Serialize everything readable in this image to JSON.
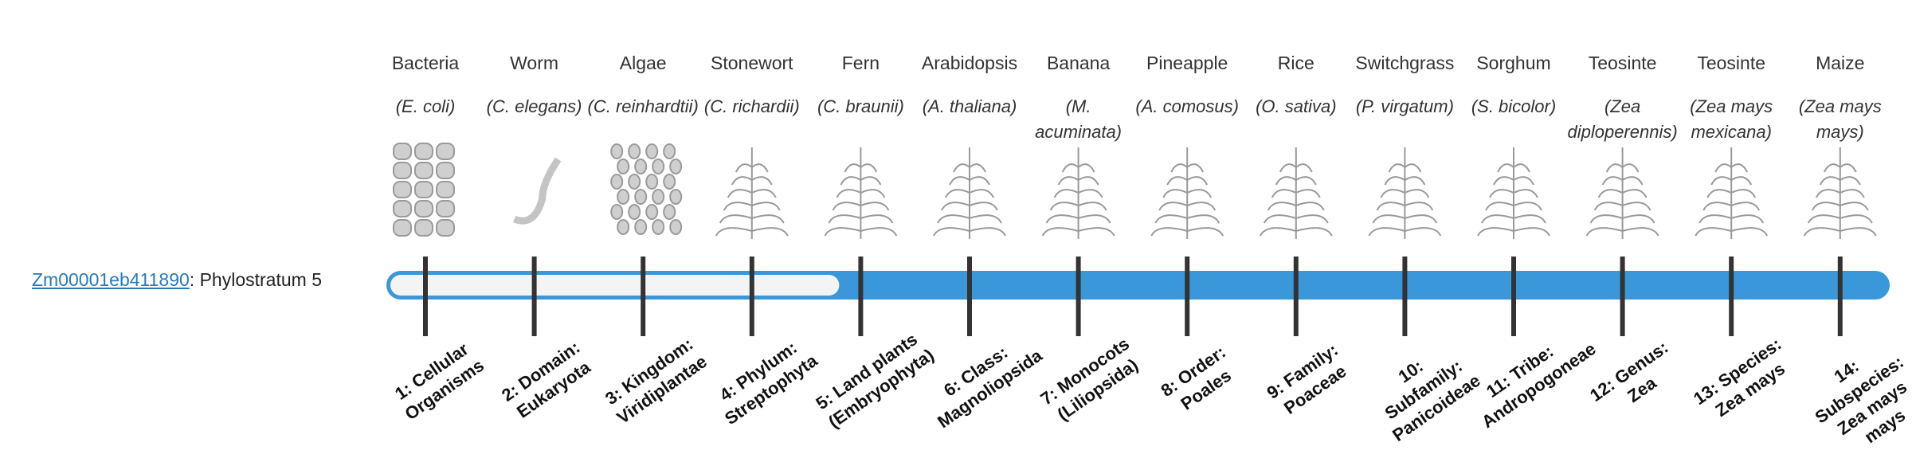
{
  "gene": {
    "id": "Zm00001eb411890",
    "separator": ":",
    "label": "Phylostratum",
    "stratum": 5
  },
  "strata": [
    {
      "name": "Bacteria",
      "species": "(E. coli)",
      "rank": "1: Cellular Organisms"
    },
    {
      "name": "Worm",
      "species": "(C. elegans)",
      "rank": "2: Domain: Eukaryota"
    },
    {
      "name": "Algae",
      "species": "(C. reinhardtii)",
      "rank": "3: Kingdom: Viridiplantae"
    },
    {
      "name": "Stonewort",
      "species": "(C. richardii)",
      "rank": "4: Phylum: Streptophyta"
    },
    {
      "name": "Fern",
      "species": "(C. braunii)",
      "rank": "5: Land plants (Embryophyta)"
    },
    {
      "name": "Arabidopsis",
      "species": "(A. thaliana)",
      "rank": "6: Class: Magnoliopsida"
    },
    {
      "name": "Banana",
      "species": "(M. acuminata)",
      "rank": "7: Monocots (Liliopsida)"
    },
    {
      "name": "Pineapple",
      "species": "(A. comosus)",
      "rank": "8: Order: Poales"
    },
    {
      "name": "Rice",
      "species": "(O. sativa)",
      "rank": "9: Family: Poaceae"
    },
    {
      "name": "Switchgrass",
      "species": "(P. virgatum)",
      "rank": "10: Subfamily: Panicoideae"
    },
    {
      "name": "Sorghum",
      "species": "(S. bicolor)",
      "rank": "11: Tribe: Andropogoneae"
    },
    {
      "name": "Teosinte",
      "species": "(Zea diploperennis)",
      "rank": "12: Genus: Zea"
    },
    {
      "name": "Teosinte",
      "species": "(Zea mays mexicana)",
      "rank": "13: Species: Zea mays"
    },
    {
      "name": "Maize",
      "species": "(Zea mays mays)",
      "rank": "14: Subspecies: Zea mays mays"
    }
  ]
}
